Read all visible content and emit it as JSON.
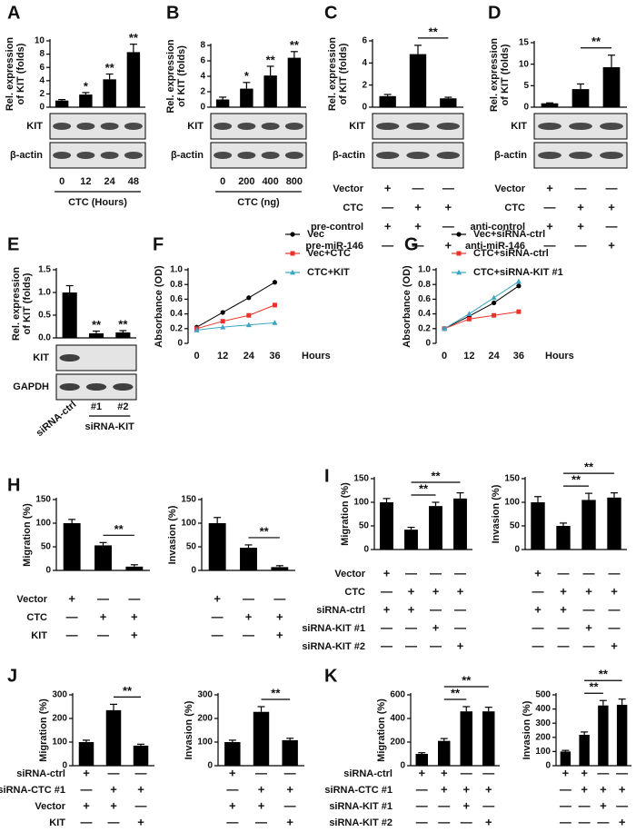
{
  "chart_data": [
    {
      "type": "bar",
      "panel": "A",
      "ylabel": [
        "Rel. expression",
        "of KIT (folds)"
      ],
      "categories": [
        "0",
        "12",
        "24",
        "48"
      ],
      "xlabel": "CTC (Hours)",
      "values": [
        1,
        1.9,
        4.2,
        8.3
      ],
      "errors": [
        0.15,
        0.3,
        0.8,
        1.2
      ],
      "ylim": [
        0,
        10
      ],
      "yticks": [
        0,
        2,
        4,
        6,
        8,
        10
      ],
      "stars": [
        {
          "bar": 1,
          "text": "*"
        },
        {
          "bar": 2,
          "text": "**"
        },
        {
          "bar": 3,
          "text": "**"
        }
      ],
      "blots": [
        "KIT",
        "β-actin"
      ],
      "color": "#000000"
    },
    {
      "type": "bar",
      "panel": "B",
      "ylabel": [
        "Rel. expression",
        "of KIT (folds)"
      ],
      "categories": [
        "0",
        "200",
        "400",
        "800"
      ],
      "xlabel": "CTC (ng)",
      "values": [
        1,
        2.4,
        4.1,
        6.4
      ],
      "errors": [
        0.3,
        0.8,
        1.2,
        0.8
      ],
      "ylim": [
        0,
        8
      ],
      "yticks": [
        0,
        2,
        4,
        6,
        8
      ],
      "stars": [
        {
          "bar": 1,
          "text": "*"
        },
        {
          "bar": 2,
          "text": "**"
        },
        {
          "bar": 3,
          "text": "**"
        }
      ],
      "blots": [
        "KIT",
        "β-actin"
      ],
      "color": "#000000"
    },
    {
      "type": "bar",
      "panel": "C",
      "ylabel": [
        "Rel. expression",
        "of KIT (folds)"
      ],
      "values": [
        1,
        4.8,
        0.8
      ],
      "errors": [
        0.15,
        0.8,
        0.1
      ],
      "ylim": [
        0,
        6
      ],
      "yticks": [
        0,
        2,
        4,
        6
      ],
      "brackets": [
        {
          "from": 1,
          "to": 2,
          "text": "**"
        }
      ],
      "blots": [
        "KIT",
        "β-actin"
      ],
      "color": "#000000",
      "conditions": [
        {
          "name": "Vector",
          "signs": [
            "+",
            "—",
            "—"
          ]
        },
        {
          "name": "CTC",
          "signs": [
            "—",
            "+",
            "+"
          ]
        },
        {
          "name": "pre-control",
          "signs": [
            "+",
            "+",
            "—"
          ]
        },
        {
          "name": "pre-miR-146",
          "signs": [
            "—",
            "—",
            "+"
          ]
        }
      ]
    },
    {
      "type": "bar",
      "panel": "D",
      "ylabel": [
        "Rel. expression",
        "of KIT (folds)"
      ],
      "values": [
        0.9,
        4.2,
        9.3
      ],
      "errors": [
        0.1,
        1.2,
        2.8
      ],
      "ylim": [
        0,
        15
      ],
      "yticks": [
        0,
        5,
        10,
        15
      ],
      "brackets": [
        {
          "from": 1,
          "to": 2,
          "text": "**"
        }
      ],
      "blots": [
        "KIT",
        "β-actin"
      ],
      "color": "#000000",
      "conditions": [
        {
          "name": "Vector",
          "signs": [
            "+",
            "—",
            "—"
          ]
        },
        {
          "name": "CTC",
          "signs": [
            "—",
            "+",
            "+"
          ]
        },
        {
          "name": "anti-control",
          "signs": [
            "+",
            "+",
            "—"
          ]
        },
        {
          "name": "anti-miR-146",
          "signs": [
            "—",
            "—",
            "+"
          ]
        }
      ]
    },
    {
      "type": "bar",
      "panel": "E",
      "ylabel": [
        "Rel. expression",
        "of KIT (folds)"
      ],
      "categories": [
        "siRNA-ctrl",
        "#1",
        "#2"
      ],
      "group_label": "siRNA-KIT",
      "values": [
        1.0,
        0.1,
        0.12
      ],
      "errors": [
        0.15,
        0.05,
        0.04
      ],
      "ylim": [
        0,
        1.5
      ],
      "yticks": [
        {
          "value": 0,
          "label": "0.0"
        },
        0.5,
        {
          "value": 1,
          "label": "1.0"
        },
        1.5
      ],
      "stars": [
        {
          "bar": 1,
          "text": "**"
        },
        {
          "bar": 2,
          "text": "**"
        }
      ],
      "blots": [
        "KIT",
        "GAPDH"
      ],
      "color": "#000000"
    },
    {
      "type": "line",
      "panel": "F",
      "ylabel": [
        "Absorbance (OD)"
      ],
      "xlabel": "Hours",
      "x": [
        0,
        12,
        24,
        36
      ],
      "xlim": [
        -4,
        40
      ],
      "xticks": [
        0,
        12,
        24,
        36
      ],
      "ylim": [
        0,
        1.0
      ],
      "yticks": [
        0,
        0.2,
        0.4,
        0.6,
        0.8,
        {
          "value": 1,
          "label": "1.0"
        }
      ],
      "series": [
        {
          "name": "Vec",
          "color": "#000000",
          "marker": "circle",
          "values": [
            0.22,
            0.42,
            0.62,
            0.83
          ]
        },
        {
          "name": "Vec+CTC",
          "color": "#e8322b",
          "marker": "square",
          "values": [
            0.2,
            0.3,
            0.38,
            0.52
          ]
        },
        {
          "name": "CTC+KIT",
          "color": "#3aa6c2",
          "marker": "triangle",
          "values": [
            0.18,
            0.22,
            0.25,
            0.28
          ]
        }
      ]
    },
    {
      "type": "line",
      "panel": "G",
      "ylabel": [
        "Absorbance (OD)"
      ],
      "xlabel": "Hours",
      "x": [
        0,
        12,
        24,
        36
      ],
      "xlim": [
        -4,
        40
      ],
      "xticks": [
        0,
        12,
        24,
        36
      ],
      "ylim": [
        0,
        1.0
      ],
      "yticks": [
        0,
        0.2,
        0.4,
        0.6,
        0.8,
        {
          "value": 1,
          "label": "1.0"
        }
      ],
      "series": [
        {
          "name": "Vec+siRNA-ctrl",
          "color": "#000000",
          "marker": "circle",
          "values": [
            0.2,
            0.37,
            0.55,
            0.78
          ]
        },
        {
          "name": "CTC+siRNA-ctrl",
          "color": "#e8322b",
          "marker": "square",
          "values": [
            0.2,
            0.33,
            0.38,
            0.43
          ]
        },
        {
          "name": "CTC+siRNA-KIT #1",
          "color": "#3aa6c2",
          "marker": "triangle",
          "values": [
            0.2,
            0.4,
            0.62,
            0.84
          ]
        }
      ]
    },
    {
      "type": "bar",
      "panel": "H",
      "ylabel": [
        "Migration (%)"
      ],
      "values": [
        100,
        53,
        8
      ],
      "errors": [
        8,
        6,
        4
      ],
      "ylim": [
        0,
        150
      ],
      "yticks": [
        0,
        50,
        100,
        150
      ],
      "brackets": [
        {
          "from": 1,
          "to": 2,
          "text": "**"
        }
      ],
      "color": "#000000",
      "conditions": [
        {
          "name": "Vector",
          "signs": [
            "+",
            "—",
            "—"
          ]
        },
        {
          "name": "CTC",
          "signs": [
            "—",
            "+",
            "+"
          ]
        },
        {
          "name": "KIT",
          "signs": [
            "—",
            "—",
            "+"
          ]
        }
      ]
    },
    {
      "type": "bar",
      "ylabel": [
        "Invasion (%)"
      ],
      "values": [
        100,
        48,
        7
      ],
      "errors": [
        12,
        6,
        3
      ],
      "ylim": [
        0,
        150
      ],
      "yticks": [
        0,
        50,
        100,
        150
      ],
      "brackets": [
        {
          "from": 1,
          "to": 2,
          "text": "**"
        }
      ],
      "color": "#000000",
      "condition_signs": [
        [
          "+",
          "—",
          "—"
        ],
        [
          "—",
          "+",
          "+"
        ],
        [
          "—",
          "—",
          "+"
        ]
      ]
    },
    {
      "type": "bar",
      "panel": "I",
      "ylabel": [
        "Migration (%)"
      ],
      "values": [
        100,
        42,
        92,
        108
      ],
      "errors": [
        8,
        5,
        8,
        12
      ],
      "ylim": [
        0,
        150
      ],
      "yticks": [
        0,
        50,
        100,
        150
      ],
      "brackets": [
        {
          "from": 1,
          "to": 2,
          "text": "**"
        },
        {
          "from": 1,
          "to": 3,
          "text": "**"
        }
      ],
      "color": "#000000",
      "conditions": [
        {
          "name": "Vector",
          "signs": [
            "+",
            "—",
            "—",
            "—"
          ]
        },
        {
          "name": "CTC",
          "signs": [
            "—",
            "+",
            "+",
            "+"
          ]
        },
        {
          "name": "siRNA-ctrl",
          "signs": [
            "+",
            "+",
            "—",
            "—"
          ]
        },
        {
          "name": "siRNA-KIT #1",
          "signs": [
            "—",
            "—",
            "+",
            "—"
          ]
        },
        {
          "name": "siRNA-KIT #2",
          "signs": [
            "—",
            "—",
            "—",
            "+"
          ]
        }
      ]
    },
    {
      "type": "bar",
      "ylabel": [
        "Invasion (%)"
      ],
      "values": [
        100,
        50,
        105,
        110
      ],
      "errors": [
        12,
        6,
        14,
        10
      ],
      "ylim": [
        0,
        150
      ],
      "yticks": [
        0,
        50,
        100,
        150
      ],
      "brackets": [
        {
          "from": 1,
          "to": 2,
          "text": "**"
        },
        {
          "from": 1,
          "to": 3,
          "text": "**"
        }
      ],
      "color": "#000000",
      "condition_signs": [
        [
          "+",
          "—",
          "—",
          "—"
        ],
        [
          "—",
          "+",
          "+",
          "+"
        ],
        [
          "+",
          "+",
          "—",
          "—"
        ],
        [
          "—",
          "—",
          "+",
          "—"
        ],
        [
          "—",
          "—",
          "—",
          "+"
        ]
      ]
    },
    {
      "type": "bar",
      "panel": "J",
      "ylabel": [
        "Migration (%)"
      ],
      "values": [
        100,
        235,
        85
      ],
      "errors": [
        8,
        25,
        6
      ],
      "ylim": [
        0,
        300
      ],
      "yticks": [
        0,
        100,
        200,
        300
      ],
      "brackets": [
        {
          "from": 1,
          "to": 2,
          "text": "**"
        }
      ],
      "color": "#000000",
      "conditions": [
        {
          "name": "siRNA-ctrl",
          "signs": [
            "+",
            "—",
            "—"
          ]
        },
        {
          "name": "siRNA-CTC #1",
          "signs": [
            "—",
            "+",
            "+"
          ]
        },
        {
          "name": "Vector",
          "signs": [
            "+",
            "+",
            "—"
          ]
        },
        {
          "name": "KIT",
          "signs": [
            "—",
            "—",
            "+"
          ]
        }
      ]
    },
    {
      "type": "bar",
      "ylabel": [
        "Invasion (%)"
      ],
      "values": [
        100,
        228,
        108
      ],
      "errors": [
        8,
        22,
        8
      ],
      "ylim": [
        0,
        300
      ],
      "yticks": [
        0,
        100,
        200,
        300
      ],
      "brackets": [
        {
          "from": 1,
          "to": 2,
          "text": "**"
        }
      ],
      "color": "#000000",
      "condition_signs": [
        [
          "+",
          "—",
          "—"
        ],
        [
          "—",
          "+",
          "+"
        ],
        [
          "+",
          "+",
          "—"
        ],
        [
          "—",
          "—",
          "+"
        ]
      ]
    },
    {
      "type": "bar",
      "panel": "K",
      "ylabel": [
        "Migration (%)"
      ],
      "values": [
        100,
        210,
        460,
        460
      ],
      "errors": [
        10,
        20,
        40,
        35
      ],
      "ylim": [
        0,
        600
      ],
      "yticks": [
        0,
        200,
        400,
        600
      ],
      "brackets": [
        {
          "from": 1,
          "to": 2,
          "text": "**"
        },
        {
          "from": 1,
          "to": 3,
          "text": "**"
        }
      ],
      "color": "#000000",
      "conditions": [
        {
          "name": "siRNA-ctrl",
          "signs": [
            "+",
            "+",
            "—",
            "—"
          ]
        },
        {
          "name": "siRNA-CTC #1",
          "signs": [
            "—",
            "+",
            "+",
            "+"
          ]
        },
        {
          "name": "siRNA-KIT #1",
          "signs": [
            "—",
            "—",
            "+",
            "—"
          ]
        },
        {
          "name": "siRNA-KIT #2",
          "signs": [
            "—",
            "—",
            "—",
            "+"
          ]
        }
      ]
    },
    {
      "type": "bar",
      "ylabel": [
        "Invasion (%)"
      ],
      "values": [
        100,
        218,
        425,
        430
      ],
      "errors": [
        8,
        20,
        35,
        40
      ],
      "ylim": [
        0,
        500
      ],
      "yticks": [
        0,
        100,
        200,
        300,
        400,
        500
      ],
      "brackets": [
        {
          "from": 1,
          "to": 2,
          "text": "**"
        },
        {
          "from": 1,
          "to": 3,
          "text": "**"
        }
      ],
      "color": "#000000",
      "condition_signs": [
        [
          "+",
          "+",
          "—",
          "—"
        ],
        [
          "—",
          "+",
          "+",
          "+"
        ],
        [
          "—",
          "—",
          "+",
          "—"
        ],
        [
          "—",
          "—",
          "—",
          "+"
        ]
      ]
    }
  ]
}
